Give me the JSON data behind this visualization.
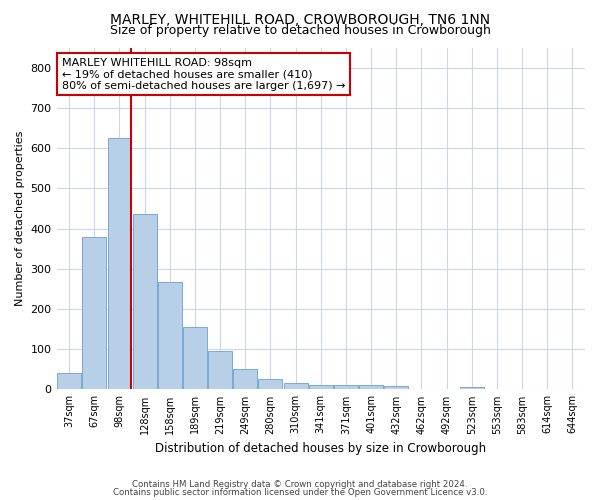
{
  "title": "MARLEY, WHITEHILL ROAD, CROWBOROUGH, TN6 1NN",
  "subtitle": "Size of property relative to detached houses in Crowborough",
  "xlabel": "Distribution of detached houses by size in Crowborough",
  "ylabel": "Number of detached properties",
  "categories": [
    "37sqm",
    "67sqm",
    "98sqm",
    "128sqm",
    "158sqm",
    "189sqm",
    "219sqm",
    "249sqm",
    "280sqm",
    "310sqm",
    "341sqm",
    "371sqm",
    "401sqm",
    "432sqm",
    "462sqm",
    "492sqm",
    "523sqm",
    "553sqm",
    "583sqm",
    "614sqm",
    "644sqm"
  ],
  "values": [
    42,
    380,
    625,
    435,
    268,
    155,
    95,
    52,
    27,
    17,
    11,
    11,
    11,
    9,
    0,
    0,
    7,
    0,
    0,
    0,
    0
  ],
  "bar_color": "#b8cfe8",
  "bar_edge_color": "#6a9fd0",
  "red_line_index": 2,
  "annotation_text": "MARLEY WHITEHILL ROAD: 98sqm\n← 19% of detached houses are smaller (410)\n80% of semi-detached houses are larger (1,697) →",
  "annotation_box_color": "#ffffff",
  "annotation_box_edge_color": "#cc0000",
  "ylim": [
    0,
    850
  ],
  "yticks": [
    0,
    100,
    200,
    300,
    400,
    500,
    600,
    700,
    800
  ],
  "footer_line1": "Contains HM Land Registry data © Crown copyright and database right 2024.",
  "footer_line2": "Contains public sector information licensed under the Open Government Licence v3.0.",
  "bg_color": "#ffffff",
  "grid_color": "#ccd6e8",
  "title_fontsize": 10,
  "subtitle_fontsize": 9,
  "annotation_fontsize": 8
}
